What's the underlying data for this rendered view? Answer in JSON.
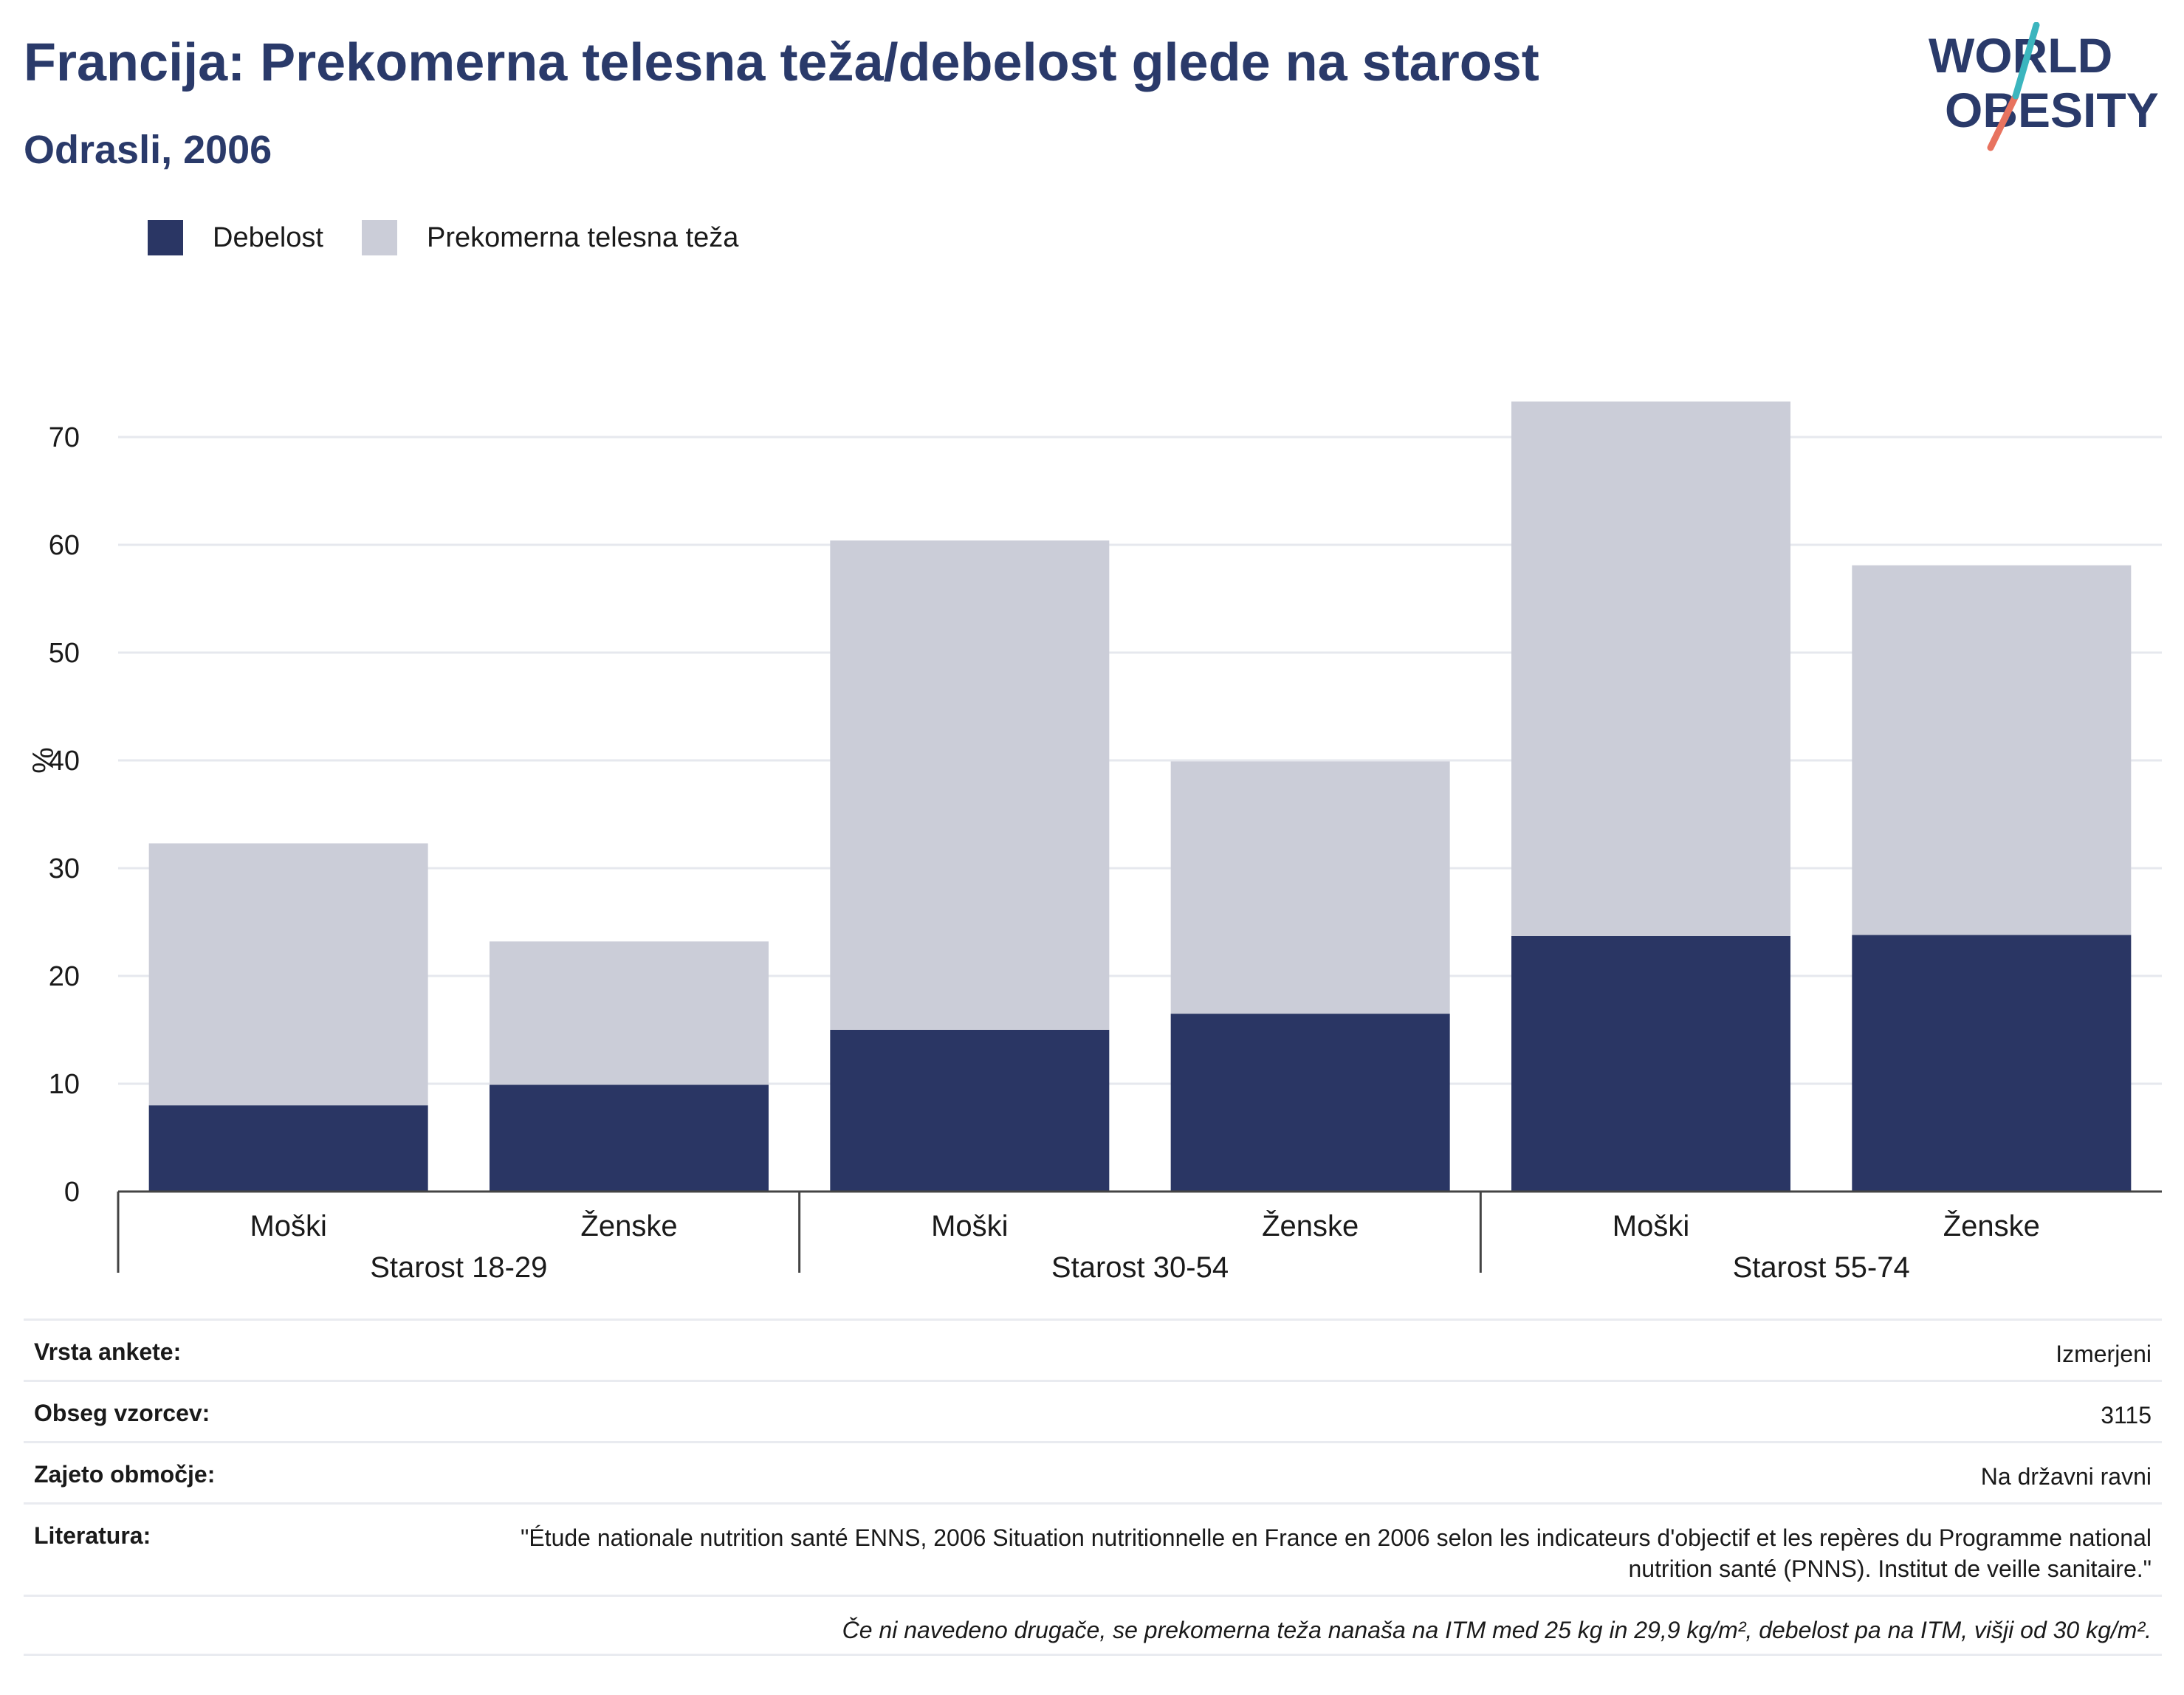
{
  "title": "Francija: Prekomerna telesna teža/debelost glede na starost",
  "subtitle": "Odrasli, 2006",
  "logo": {
    "line1": "WORLD",
    "line2": "OBESITY"
  },
  "colors": {
    "title": "#2a3a6a",
    "obesity": "#2a3664",
    "overweight": "#cbcdd8",
    "grid": "#e6e8ee",
    "axis": "#444444",
    "logo_teal": "#3bb5be",
    "logo_coral": "#e8735f"
  },
  "chart_data": {
    "type": "bar",
    "stacked": true,
    "ylabel": "%",
    "ylim": [
      0,
      75
    ],
    "yticks": [
      0,
      10,
      20,
      30,
      40,
      50,
      60,
      70
    ],
    "grid": true,
    "legend_position": "top-left",
    "groups": [
      "Starost 18-29",
      "Starost 30-54",
      "Starost 55-74"
    ],
    "categories": [
      "Moški",
      "Ženske",
      "Moški",
      "Ženske",
      "Moški",
      "Ženske"
    ],
    "series": [
      {
        "name": "Debelost",
        "color": "#2a3664",
        "values": [
          8.0,
          9.9,
          15.0,
          16.5,
          23.7,
          23.8
        ]
      },
      {
        "name": "Prekomerna telesna teža",
        "color": "#cbcdd8",
        "values": [
          24.3,
          13.3,
          45.4,
          23.4,
          49.6,
          34.3
        ]
      }
    ]
  },
  "info": {
    "survey_type_label": "Vrsta ankete:",
    "survey_type_value": "Izmerjeni",
    "sample_size_label": "Obseg vzorcev:",
    "sample_size_value": "3115",
    "area_label": "Zajeto območje:",
    "area_value": "Na državni ravni",
    "literature_label": "Literatura:",
    "literature_value": "\"Étude nationale nutrition santé ENNS, 2006 Situation nutritionnelle en France en 2006 selon les indicateurs d'objectif et les repères du Programme national nutrition santé (PNNS). Institut de veille sanitaire.\"",
    "note": "Če ni navedeno drugače, se prekomerna teža nanaša na ITM med 25 kg in 29,9 kg/m², debelost pa na ITM, višji od 30 kg/m²."
  }
}
